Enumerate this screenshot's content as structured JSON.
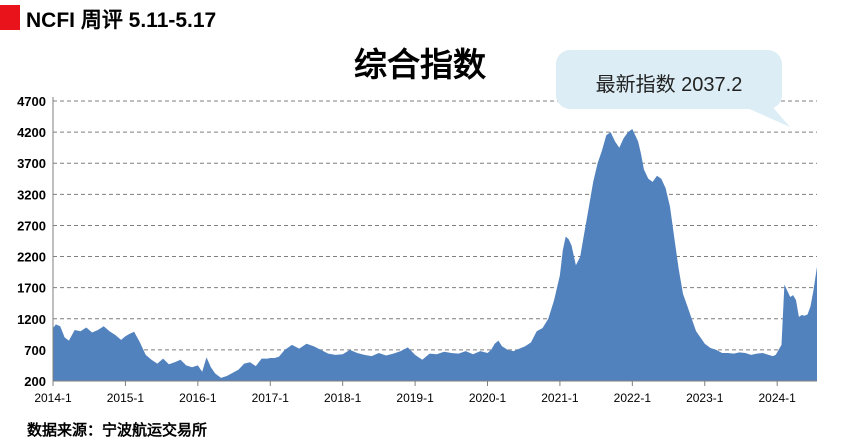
{
  "header": {
    "title": "NCFI 周评 5.11-5.17"
  },
  "colors": {
    "header_mark": "#e8131b",
    "area_fill": "#5182bd",
    "callout_fill": "#dcedf5",
    "grid": "#7f7f7f",
    "axis": "#7f7f7f"
  },
  "callout": {
    "text": "最新指数 2037.2"
  },
  "source": {
    "text": "数据来源：宁波航运交易所"
  },
  "chart_data": {
    "type": "area",
    "title": "综合指数",
    "xlabel": "",
    "ylabel": "",
    "ylim": [
      200,
      4700
    ],
    "yticks": [
      200,
      700,
      1200,
      1700,
      2200,
      2700,
      3200,
      3700,
      4200,
      4700
    ],
    "grid": true,
    "legend": "none",
    "xlim": [
      2014.0,
      2024.55
    ],
    "xticks": [
      {
        "label": "2014-1",
        "x": 2014
      },
      {
        "label": "2015-1",
        "x": 2015
      },
      {
        "label": "2016-1",
        "x": 2016
      },
      {
        "label": "2017-1",
        "x": 2017
      },
      {
        "label": "2018-1",
        "x": 2018
      },
      {
        "label": "2019-1",
        "x": 2019
      },
      {
        "label": "2020-1",
        "x": 2020
      },
      {
        "label": "2021-1",
        "x": 2021
      },
      {
        "label": "2022-1",
        "x": 2022
      },
      {
        "label": "2023-1",
        "x": 2023
      },
      {
        "label": "2024-1",
        "x": 2024
      }
    ],
    "series": [
      {
        "x": [
          2014.0,
          2014.04,
          2014.1,
          2014.16,
          2014.22,
          2014.3,
          2014.38,
          2014.46,
          2014.54,
          2014.62,
          2014.7,
          2014.78,
          2014.86,
          2014.94,
          2015.0,
          2015.06,
          2015.12,
          2015.2,
          2015.28,
          2015.36,
          2015.44,
          2015.52,
          2015.6,
          2015.68,
          2015.76,
          2015.84,
          2015.92,
          2016.0,
          2016.06,
          2016.12,
          2016.18,
          2016.24,
          2016.32,
          2016.4,
          2016.48,
          2016.56,
          2016.64,
          2016.72,
          2016.8,
          2016.88,
          2016.96,
          2017.0,
          2017.06,
          2017.12,
          2017.2,
          2017.3,
          2017.4,
          2017.5,
          2017.6,
          2017.7,
          2017.8,
          2017.9,
          2018.0,
          2018.1,
          2018.2,
          2018.3,
          2018.4,
          2018.5,
          2018.6,
          2018.7,
          2018.8,
          2018.9,
          2019.0,
          2019.1,
          2019.2,
          2019.3,
          2019.4,
          2019.5,
          2019.6,
          2019.7,
          2019.8,
          2019.9,
          2020.0,
          2020.05,
          2020.1,
          2020.15,
          2020.2,
          2020.28,
          2020.36,
          2020.44,
          2020.52,
          2020.6,
          2020.68,
          2020.76,
          2020.84,
          2020.92,
          2021.0,
          2021.04,
          2021.08,
          2021.12,
          2021.16,
          2021.22,
          2021.28,
          2021.34,
          2021.4,
          2021.46,
          2021.52,
          2021.58,
          2021.64,
          2021.7,
          2021.76,
          2021.82,
          2021.88,
          2021.94,
          2022.0,
          2022.04,
          2022.08,
          2022.12,
          2022.16,
          2022.22,
          2022.28,
          2022.34,
          2022.4,
          2022.46,
          2022.52,
          2022.58,
          2022.64,
          2022.7,
          2022.76,
          2022.82,
          2022.88,
          2022.94,
          2023.0,
          2023.08,
          2023.16,
          2023.24,
          2023.32,
          2023.4,
          2023.48,
          2023.56,
          2023.64,
          2023.72,
          2023.8,
          2023.88,
          2023.94,
          2023.98,
          2024.02,
          2024.06,
          2024.1,
          2024.14,
          2024.18,
          2024.22,
          2024.26,
          2024.3,
          2024.34,
          2024.38,
          2024.42,
          2024.46,
          2024.5,
          2024.55
        ],
        "values": [
          1050,
          1110,
          1080,
          900,
          850,
          1020,
          1000,
          1060,
          980,
          1020,
          1080,
          1000,
          940,
          860,
          920,
          960,
          990,
          820,
          620,
          540,
          480,
          560,
          470,
          500,
          540,
          450,
          420,
          450,
          350,
          580,
          420,
          320,
          250,
          280,
          330,
          380,
          480,
          500,
          440,
          560,
          560,
          570,
          570,
          590,
          700,
          780,
          720,
          800,
          760,
          700,
          640,
          620,
          630,
          700,
          650,
          620,
          600,
          650,
          610,
          640,
          680,
          740,
          620,
          540,
          640,
          630,
          670,
          650,
          640,
          680,
          630,
          680,
          650,
          700,
          800,
          850,
          760,
          700,
          680,
          720,
          760,
          820,
          1000,
          1050,
          1200,
          1500,
          1900,
          2300,
          2520,
          2480,
          2380,
          2060,
          2200,
          2600,
          3000,
          3400,
          3700,
          3900,
          4150,
          4200,
          4050,
          3950,
          4100,
          4200,
          4250,
          4150,
          4050,
          3850,
          3600,
          3450,
          3400,
          3500,
          3450,
          3300,
          3000,
          2500,
          2000,
          1600,
          1400,
          1200,
          1000,
          900,
          800,
          730,
          700,
          650,
          650,
          640,
          660,
          650,
          620,
          640,
          650,
          620,
          600,
          620,
          700,
          780,
          1750,
          1650,
          1550,
          1580,
          1500,
          1230,
          1260,
          1250,
          1270,
          1400,
          1650,
          2037.2
        ]
      }
    ]
  }
}
